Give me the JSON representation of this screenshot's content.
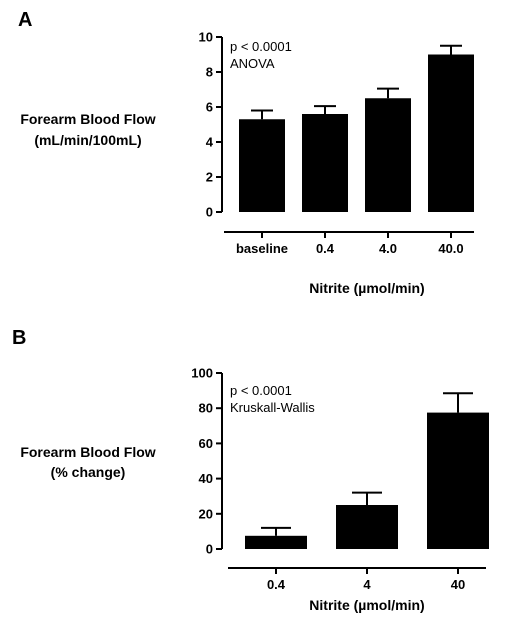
{
  "chart_data": [
    {
      "panel_label": "A",
      "type": "bar",
      "categories": [
        "baseline",
        "0.4",
        "4.0",
        "40.0"
      ],
      "values": [
        5.3,
        5.6,
        6.5,
        9.0
      ],
      "error_bars": [
        0.5,
        0.45,
        0.55,
        0.5
      ],
      "ylim": [
        0,
        10
      ],
      "yticks": [
        0,
        2,
        4,
        6,
        8,
        10
      ],
      "ylabel_line1": "Forearm Blood Flow",
      "ylabel_line2": "(mL/min/100mL)",
      "xlabel": "Nitrite (µmol/min)",
      "annotation_line1": "p < 0.0001",
      "annotation_line2": "ANOVA",
      "bar_color": "#000000"
    },
    {
      "panel_label": "B",
      "type": "bar",
      "categories": [
        "0.4",
        "4",
        "40"
      ],
      "values": [
        7.5,
        25,
        77.5
      ],
      "error_bars": [
        4.5,
        7,
        11
      ],
      "ylim": [
        0,
        100
      ],
      "yticks": [
        0,
        20,
        40,
        60,
        80,
        100
      ],
      "ylabel_line1": "Forearm Blood Flow",
      "ylabel_line2": "(% change)",
      "xlabel": "Nitrite (µmol/min)",
      "annotation_line1": "p < 0.0001",
      "annotation_line2": "Kruskall-Wallis",
      "bar_color": "#000000"
    }
  ]
}
